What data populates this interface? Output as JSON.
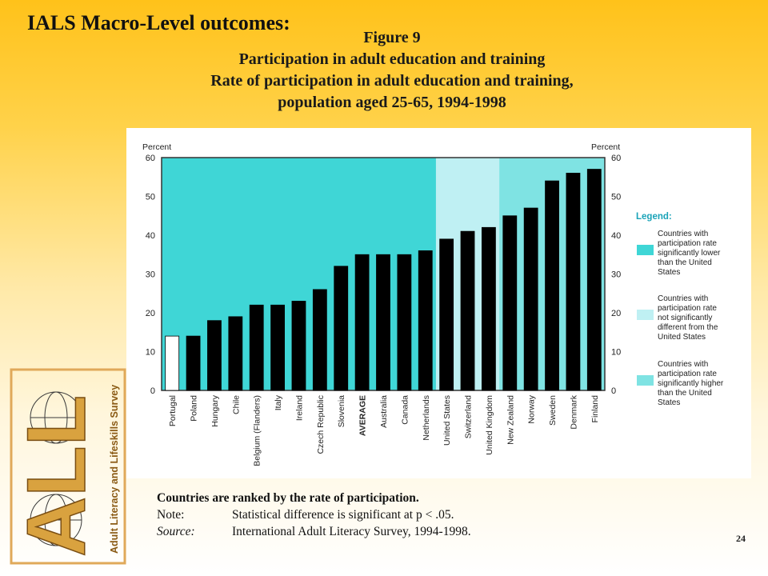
{
  "slide": {
    "title": "IALS Macro-Level outcomes:",
    "figure_label": "Figure 9",
    "figure_title": "Participation in adult education and training",
    "figure_subtitle_1": "Rate of participation in adult education and training,",
    "figure_subtitle_2": "population aged 25-65, 1994-1998",
    "page_number": "24"
  },
  "notes": {
    "ranking": "Countries are ranked by the rate of participation.",
    "note_key": "Note:",
    "note_text": "Statistical difference is significant at p < .05.",
    "source_key": "Source:",
    "source_text": "International Adult Literacy Survey, 1994-1998."
  },
  "logo": {
    "letters": "ALL",
    "text": "Adult Literacy and Lifeskills Survey",
    "frame_color": "#e0a95a"
  },
  "chart_data": {
    "type": "bar",
    "ylabel_left": "Percent",
    "ylabel_right": "Percent",
    "ylim": [
      0,
      60
    ],
    "yticks": [
      0,
      10,
      20,
      30,
      40,
      50,
      60
    ],
    "categories": [
      "Portugal",
      "Poland",
      "Hungary",
      "Chile",
      "Belgium (Flanders)",
      "Italy",
      "Ireland",
      "Czech Republic",
      "Slovenia",
      "AVERAGE",
      "Australia",
      "Canada",
      "Netherlands",
      "United States",
      "Switzerland",
      "United Kingdom",
      "New Zealand",
      "Norway",
      "Sweden",
      "Denmark",
      "Finland"
    ],
    "values": [
      14,
      14,
      18,
      19,
      22,
      22,
      23,
      26,
      32,
      35,
      35,
      35,
      36,
      39,
      41,
      42,
      45,
      47,
      54,
      56,
      57
    ],
    "bar_colors": [
      "#ffffff",
      "#000000",
      "#000000",
      "#000000",
      "#000000",
      "#000000",
      "#000000",
      "#000000",
      "#000000",
      "#000000",
      "#000000",
      "#000000",
      "#000000",
      "#000000",
      "#000000",
      "#000000",
      "#000000",
      "#000000",
      "#000000",
      "#000000",
      "#000000"
    ],
    "bold_categories": [
      "AVERAGE"
    ],
    "background_zones": [
      {
        "from": 0,
        "to": 12,
        "color": "#3fd6d6"
      },
      {
        "from": 13,
        "to": 15,
        "color": "#bff0f3"
      },
      {
        "from": 16,
        "to": 20,
        "color": "#7fe3e3"
      }
    ],
    "legend": {
      "title": "Legend:",
      "placement": "right",
      "items": [
        {
          "color": "#3fd6d6",
          "lines": [
            "Countries with",
            "participation rate",
            "significantly lower",
            "than the United",
            "States"
          ]
        },
        {
          "color": "#bff0f3",
          "lines": [
            "Countries with",
            "participation rate",
            "not significantly",
            "different from the",
            "United States"
          ]
        },
        {
          "color": "#7fe3e3",
          "lines": [
            "Countries with",
            "participation rate",
            "significantly higher",
            "than the United",
            "States"
          ]
        }
      ]
    },
    "grid": false
  }
}
